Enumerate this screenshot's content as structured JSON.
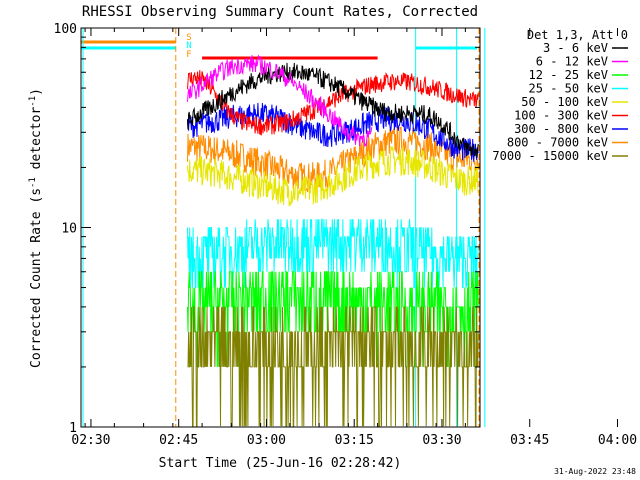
{
  "chart_data": {
    "type": "line",
    "title": "RHESSI Observing Summary Count Rates, Corrected",
    "xlabel": "Start Time (25-Jun-16 02:28:42)",
    "ylabel_main": "Corrected Count Rate (s",
    "ylabel_sup1": "-1",
    "ylabel_mid": " detector",
    "ylabel_sup2": "-1",
    "ylabel_end": ")",
    "yscale": "log",
    "ylim": [
      1,
      100
    ],
    "xlim_minutes": [
      -1.7,
      66.5
    ],
    "x_ticks": [
      {
        "label": "02:30",
        "minute": 0
      },
      {
        "label": "02:45",
        "minute": 15
      },
      {
        "label": "03:00",
        "minute": 30
      },
      {
        "label": "03:15",
        "minute": 45
      },
      {
        "label": "03:30",
        "minute": 60
      },
      {
        "label": "03:45",
        "minute": 75
      },
      {
        "label": "04:00",
        "minute": 90
      }
    ],
    "y_ticks": [
      {
        "label": "1",
        "value": 1
      },
      {
        "label": "10",
        "value": 10
      },
      {
        "label": "100",
        "value": 100
      }
    ],
    "legend_title": "Det 1,3, Att 0",
    "legend_position": "top-right",
    "series": [
      {
        "name": "3 - 6 keV",
        "color": "#000000"
      },
      {
        "name": "6 - 12 keV",
        "color": "#ff00ff"
      },
      {
        "name": "12 - 25 keV",
        "color": "#00ff00"
      },
      {
        "name": "25 - 50 keV",
        "color": "#00ffff"
      },
      {
        "name": "50 - 100 keV",
        "color": "#e6e600"
      },
      {
        "name": "100 - 300 keV",
        "color": "#ff0000"
      },
      {
        "name": "300 - 800 keV",
        "color": "#0000ff"
      },
      {
        "name": "800 - 7000 keV",
        "color": "#ff8c00"
      },
      {
        "name": "7000 - 15000 keV",
        "color": "#808000"
      }
    ],
    "flag_labels": [
      "S",
      "N",
      "F"
    ],
    "footer_timestamp": "31-Aug-2022 23:48"
  }
}
